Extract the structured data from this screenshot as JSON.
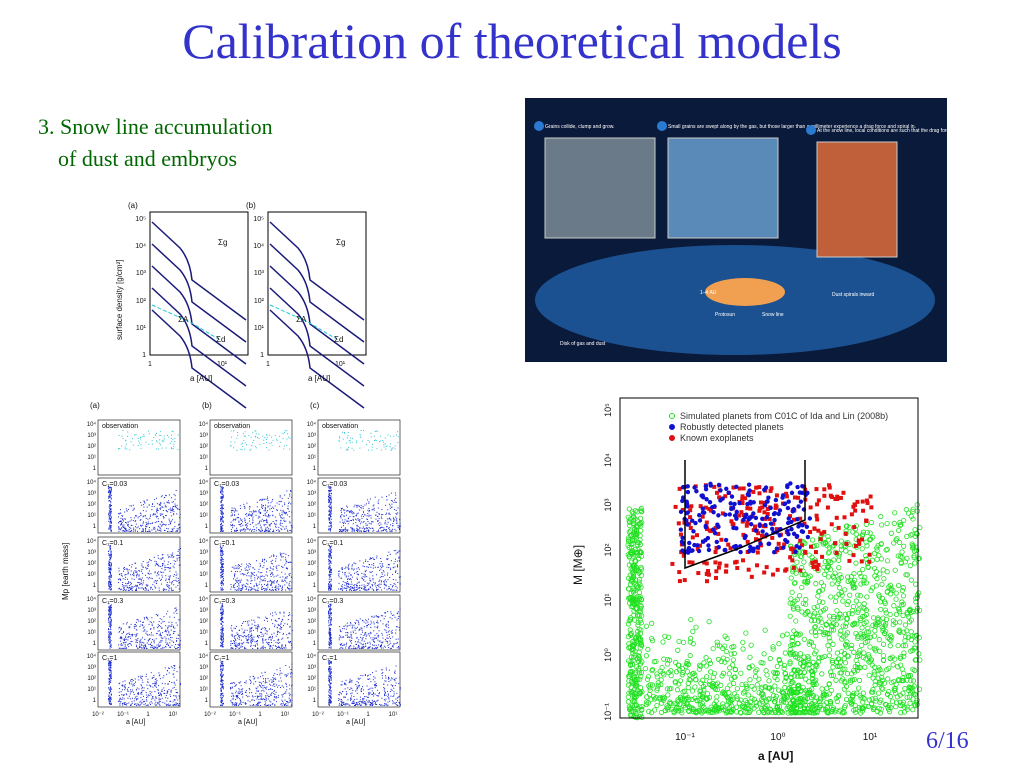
{
  "slide": {
    "title": "Calibration of theoretical models",
    "bullet": [
      "3. Snow line accumulation",
      "of dust and embryos"
    ],
    "page_number": "6/16",
    "density_figure": {
      "panels": [
        "(a)",
        "(b)"
      ],
      "ylabel": "surface density [g/cm²]",
      "xlabel": "a [AU]",
      "yticks": [
        "10⁵",
        "10⁴",
        "10³",
        "10²",
        "10¹",
        "1"
      ],
      "xticks": [
        "1",
        "10¹"
      ],
      "curve_labels": [
        "Σg",
        "ΣA",
        "Σd"
      ]
    },
    "diagram": {
      "steps": [
        "Grains collide, clump and grow.",
        "Small grains are swept along by the gas, but those larger than a millimeter experience a drag force and spiral in.",
        "At the snow line, local conditions are such that the drag force reverses direction. Grains tend to accumulate and readily coagulate into larger bodies called planetesimals."
      ],
      "labels": [
        "Disk of gas and dust",
        "Protosun",
        "Snow line",
        "Dust spirals inward",
        "1–4 AU"
      ]
    },
    "grid_figure": {
      "columns": [
        "(a)",
        "(b)",
        "(c)"
      ],
      "rows": [
        "observation",
        "C₁=0.03",
        "C₁=0.1",
        "C₁=0.3",
        "C₁=1"
      ],
      "yticks": [
        "10⁴",
        "10³",
        "10²",
        "10¹",
        "1"
      ],
      "xticks": [
        "10⁻²",
        "10⁻¹",
        "1",
        "10¹"
      ],
      "ylabel": "Mp [earth mass]",
      "xlabel": "a [AU]"
    },
    "scatter_figure": {
      "legend": [
        "Simulated planets from C01C of Ida and Lin (2008b)",
        "Robustly detected planets",
        "Known exoplanets"
      ],
      "ylabel": "M [M⊕]",
      "xlabel": "a [AU]",
      "yticks": [
        "10⁵",
        "10⁴",
        "10³",
        "10²",
        "10¹",
        "10⁰",
        "10⁻¹"
      ],
      "xticks": [
        "10⁻¹",
        "10⁰",
        "10¹"
      ]
    }
  }
}
